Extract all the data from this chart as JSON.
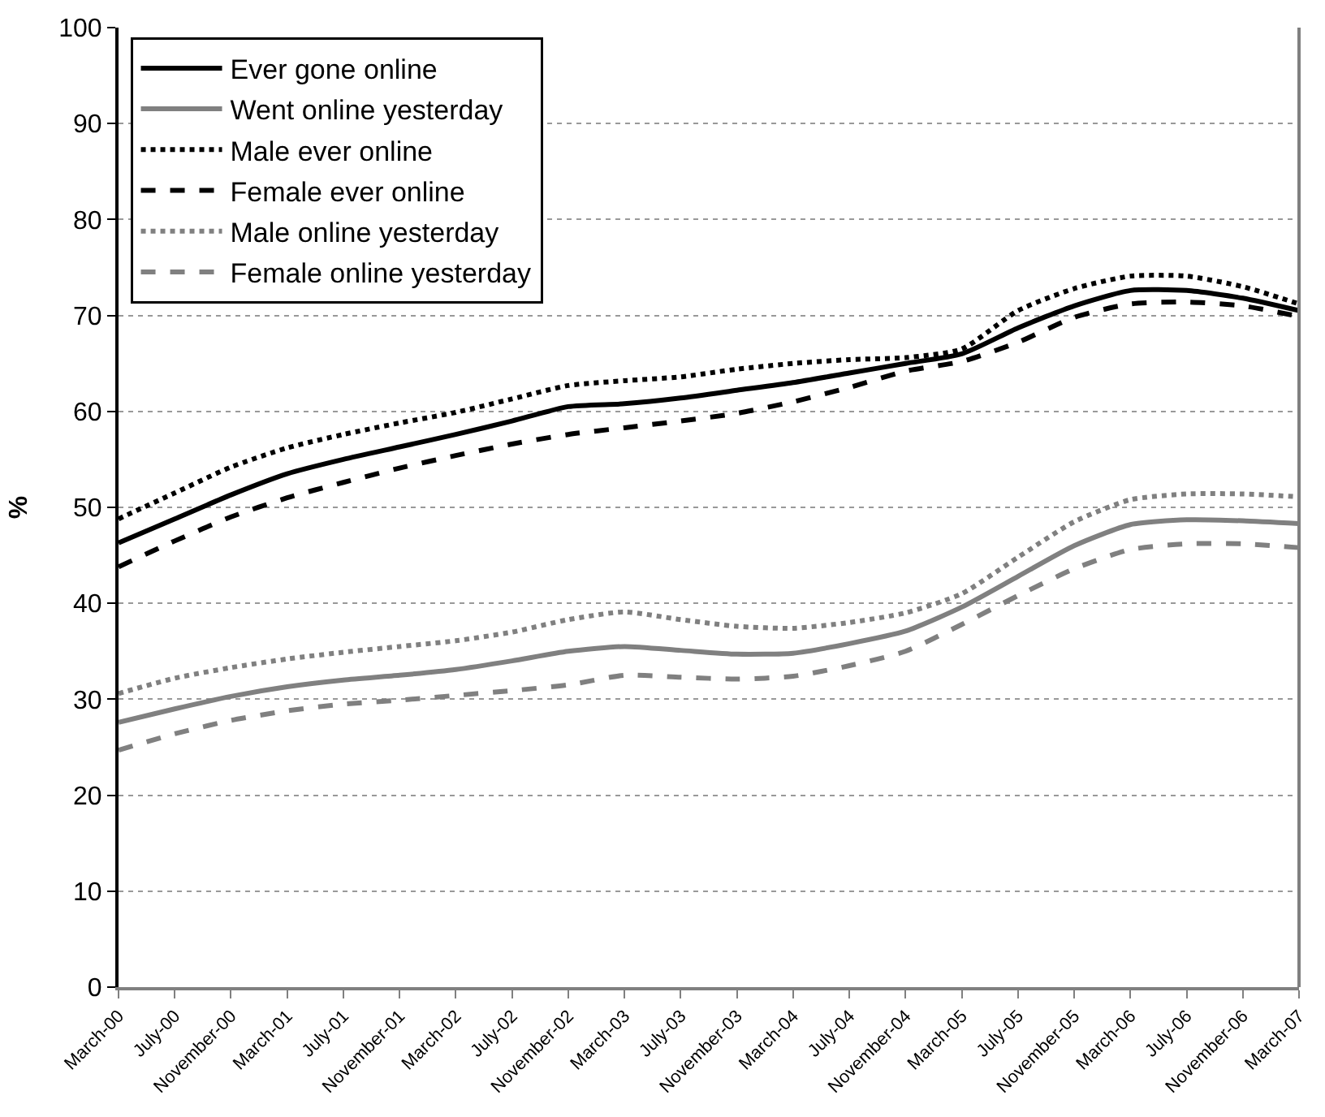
{
  "chart_data": {
    "type": "line",
    "ylabel": "%",
    "categories": [
      "March-00",
      "July-00",
      "November-00",
      "March-01",
      "July-01",
      "November-01",
      "March-02",
      "July-02",
      "November-02",
      "March-03",
      "July-03",
      "November-03",
      "March-04",
      "July-04",
      "November-04",
      "March-05",
      "July-05",
      "November-05",
      "March-06",
      "July-06",
      "November-06",
      "March-07"
    ],
    "series": [
      {
        "name": "Ever gone online",
        "color": "#000000",
        "line_style": "solid",
        "values": [
          46.3,
          48.8,
          51.3,
          53.5,
          55,
          56.3,
          57.6,
          59,
          60.5,
          60.8,
          61.4,
          62.2,
          63,
          64,
          65,
          66,
          68.7,
          71,
          72.6,
          72.6,
          71.8,
          70.5
        ]
      },
      {
        "name": "Went online yesterday",
        "color": "#808080",
        "line_style": "solid",
        "values": [
          27.6,
          29,
          30.3,
          31.3,
          32,
          32.5,
          33.1,
          34,
          35,
          35.5,
          35.1,
          34.7,
          34.8,
          35.8,
          37.1,
          39.6,
          42.8,
          46,
          48.2,
          48.7,
          48.6,
          48.3
        ]
      },
      {
        "name": "Male ever online",
        "color": "#000000",
        "line_style": "dotted",
        "values": [
          48.8,
          51.5,
          54.2,
          56.2,
          57.6,
          58.8,
          59.9,
          61.3,
          62.7,
          63.2,
          63.6,
          64.4,
          65,
          65.4,
          65.6,
          66.5,
          70.5,
          72.8,
          74.1,
          74.1,
          73,
          71.2
        ]
      },
      {
        "name": "Female ever online",
        "color": "#000000",
        "line_style": "dashed",
        "values": [
          43.8,
          46.5,
          49,
          51,
          52.6,
          54.1,
          55.4,
          56.6,
          57.6,
          58.3,
          59,
          59.8,
          61,
          62.5,
          64.2,
          65.2,
          67.2,
          69.8,
          71.2,
          71.4,
          71,
          69.9
        ]
      },
      {
        "name": "Male online yesterday",
        "color": "#808080",
        "line_style": "dotted",
        "values": [
          30.6,
          32.2,
          33.3,
          34.2,
          34.9,
          35.5,
          36.1,
          37,
          38.3,
          39.1,
          38.3,
          37.6,
          37.4,
          38,
          39,
          41,
          44.8,
          48.5,
          50.8,
          51.4,
          51.4,
          51.1
        ]
      },
      {
        "name": "Female online yesterday",
        "color": "#808080",
        "line_style": "dashed",
        "values": [
          24.7,
          26.4,
          27.8,
          28.8,
          29.5,
          29.9,
          30.4,
          30.9,
          31.5,
          32.5,
          32.3,
          32.1,
          32.4,
          33.5,
          35,
          37.8,
          40.8,
          43.6,
          45.6,
          46.2,
          46.2,
          45.8
        ]
      }
    ],
    "ylim": [
      0,
      100
    ],
    "yticks": [
      0,
      10,
      20,
      30,
      40,
      50,
      60,
      70,
      80,
      90,
      100
    ],
    "grid": "y",
    "legend": "top left",
    "marker": "none"
  }
}
